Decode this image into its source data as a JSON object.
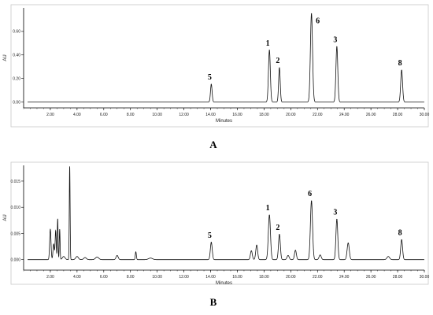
{
  "chart_data": [
    {
      "type": "line",
      "panel_label": "A",
      "xlabel": "Minutes",
      "ylabel": "AU",
      "xlim": [
        0,
        30
      ],
      "ylim": [
        -0.05,
        0.8
      ],
      "x_ticks": [
        2,
        4,
        6,
        8,
        10,
        12,
        14,
        16,
        18,
        20,
        22,
        24,
        26,
        28,
        30
      ],
      "x_tick_labels": [
        "2.00",
        "4.00",
        "6.00",
        "8.00",
        "10.00",
        "12.00",
        "14.00",
        "16.00",
        "18.00",
        "20.00",
        "22.00",
        "24.00",
        "26.00",
        "28.00",
        "30.00"
      ],
      "y_ticks": [
        0,
        0.2,
        0.4,
        0.6
      ],
      "y_tick_labels": [
        "0.00",
        "0.20",
        "0.40",
        "0.60"
      ],
      "baseline": 0.0,
      "peaks": [
        {
          "label": "5",
          "x": 14.05,
          "height": 0.15,
          "width": 0.06
        },
        {
          "label": "1",
          "x": 18.4,
          "height": 0.44,
          "width": 0.07
        },
        {
          "label": "2",
          "x": 19.15,
          "height": 0.29,
          "width": 0.06
        },
        {
          "label": "6",
          "x": 21.55,
          "height": 0.75,
          "width": 0.08
        },
        {
          "label": "3",
          "x": 23.45,
          "height": 0.47,
          "width": 0.07
        },
        {
          "label": "8",
          "x": 28.3,
          "height": 0.27,
          "width": 0.07
        }
      ],
      "minor_peaks": []
    },
    {
      "type": "line",
      "panel_label": "B",
      "xlabel": "Minutes",
      "ylabel": "AU",
      "xlim": [
        0,
        30
      ],
      "ylim": [
        -0.002,
        0.018
      ],
      "x_ticks": [
        2,
        4,
        6,
        8,
        10,
        12,
        14,
        16,
        18,
        20,
        22,
        24,
        26,
        28,
        30
      ],
      "x_tick_labels": [
        "2.00",
        "4.00",
        "6.00",
        "8.00",
        "10.00",
        "12.00",
        "14.00",
        "16.00",
        "18.00",
        "20.00",
        "22.00",
        "24.00",
        "26.00",
        "28.00",
        "30.00"
      ],
      "y_ticks": [
        0,
        0.005,
        0.01,
        0.015
      ],
      "y_tick_labels": [
        "0.000",
        "0.005",
        "0.010",
        "0.015"
      ],
      "baseline": 0.0,
      "peaks": [
        {
          "label": "5",
          "x": 14.05,
          "height": 0.0033,
          "width": 0.07
        },
        {
          "label": "1",
          "x": 18.4,
          "height": 0.0085,
          "width": 0.08
        },
        {
          "label": "2",
          "x": 19.15,
          "height": 0.0048,
          "width": 0.07
        },
        {
          "label": "6",
          "x": 21.55,
          "height": 0.0112,
          "width": 0.08
        },
        {
          "label": "3",
          "x": 23.45,
          "height": 0.0077,
          "width": 0.07
        },
        {
          "label": "8",
          "x": 28.3,
          "height": 0.0038,
          "width": 0.07
        }
      ],
      "minor_peaks": [
        {
          "x": 2.0,
          "height": 0.0058,
          "width": 0.05
        },
        {
          "x": 2.25,
          "height": 0.003,
          "width": 0.05
        },
        {
          "x": 2.4,
          "height": 0.0055,
          "width": 0.04
        },
        {
          "x": 2.55,
          "height": 0.0078,
          "width": 0.03
        },
        {
          "x": 2.7,
          "height": 0.0058,
          "width": 0.03
        },
        {
          "x": 3.0,
          "height": 0.0006,
          "width": 0.1
        },
        {
          "x": 3.45,
          "height": 0.0178,
          "width": 0.03
        },
        {
          "x": 4.0,
          "height": 0.0006,
          "width": 0.1
        },
        {
          "x": 4.6,
          "height": 0.0004,
          "width": 0.1
        },
        {
          "x": 5.5,
          "height": 0.0005,
          "width": 0.12
        },
        {
          "x": 7.0,
          "height": 0.0008,
          "width": 0.08
        },
        {
          "x": 8.4,
          "height": 0.0015,
          "width": 0.04
        },
        {
          "x": 9.5,
          "height": 0.0003,
          "width": 0.15
        },
        {
          "x": 17.05,
          "height": 0.0017,
          "width": 0.07
        },
        {
          "x": 17.45,
          "height": 0.0028,
          "width": 0.07
        },
        {
          "x": 19.8,
          "height": 0.0008,
          "width": 0.08
        },
        {
          "x": 20.35,
          "height": 0.0018,
          "width": 0.07
        },
        {
          "x": 22.2,
          "height": 0.0009,
          "width": 0.08
        },
        {
          "x": 24.3,
          "height": 0.0032,
          "width": 0.08
        },
        {
          "x": 27.3,
          "height": 0.0006,
          "width": 0.1
        }
      ]
    }
  ]
}
